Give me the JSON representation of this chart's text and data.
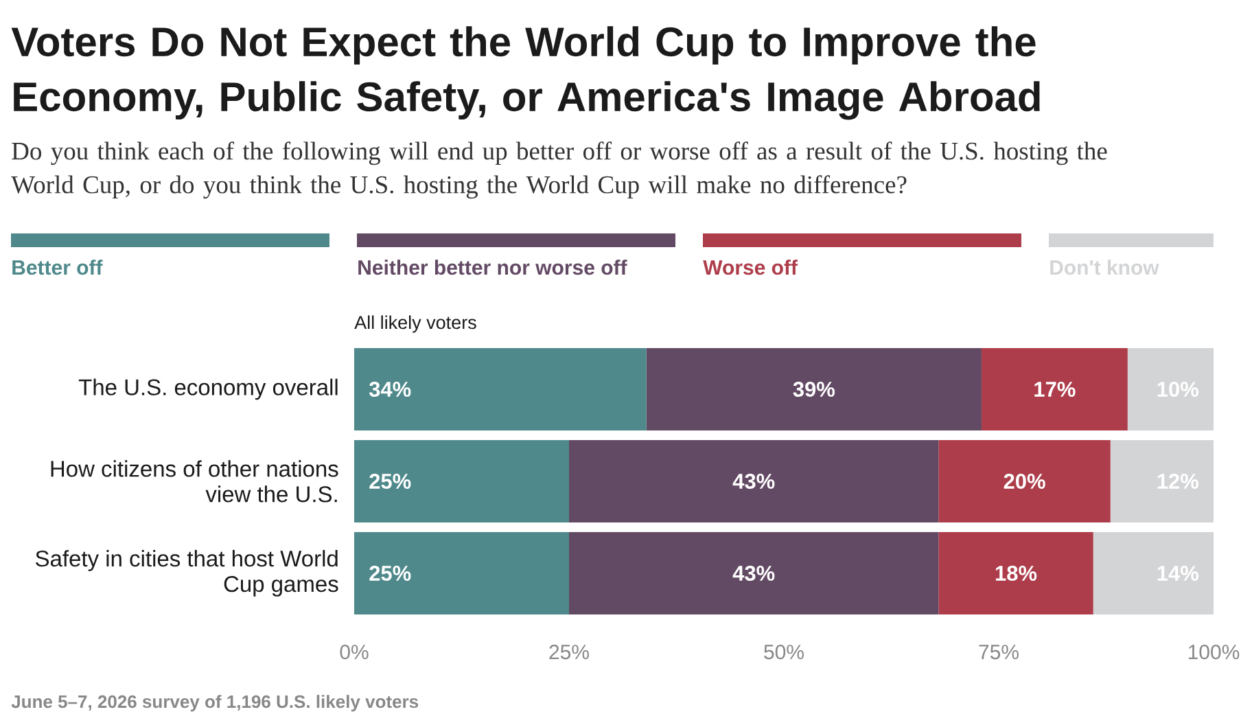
{
  "chart_data": {
    "type": "bar",
    "orientation": "horizontal",
    "stacked": true,
    "title": "Voters Do Not Expect the World Cup to Improve the Economy, Public Safety, or America's Image Abroad",
    "subtitle": "Do you think each of the following will end up better off or worse off as a result of the U.S. hosting the World Cup, or do you think the U.S. hosting the World Cup will make no difference?",
    "annotations": [
      "All likely voters",
      "June 5–7, 2026 survey of 1,196 U.S. likely voters"
    ],
    "categories": [
      "The U.S. economy overall",
      "How citizens of other nations view the U.S.",
      "Safety in cities that host World Cup games"
    ],
    "series": [
      {
        "name": "Better off",
        "color": "#4f898b",
        "values": [
          34,
          25,
          25
        ],
        "value_labels": [
          "34%",
          "25%",
          "25%"
        ]
      },
      {
        "name": "Neither better nor worse off",
        "color": "#634a64",
        "values": [
          39,
          43,
          43
        ],
        "value_labels": [
          "39%",
          "43%",
          "43%"
        ]
      },
      {
        "name": "Worse off",
        "color": "#ae3d4b",
        "values": [
          17,
          20,
          18
        ],
        "value_labels": [
          "17%",
          "20%",
          "18%"
        ]
      },
      {
        "name": "Don't know",
        "color": "#d3d4d6",
        "values": [
          10,
          12,
          14
        ],
        "value_labels": [
          "10%",
          "12%",
          "14%"
        ]
      }
    ],
    "xlim": [
      0,
      100
    ],
    "xticks": [
      {
        "value": 0,
        "label": "0%"
      },
      {
        "value": 25,
        "label": "25%"
      },
      {
        "value": 50,
        "label": "50%"
      },
      {
        "value": 75,
        "label": "75%"
      },
      {
        "value": 100,
        "label": "100%"
      }
    ],
    "legend": "top"
  }
}
